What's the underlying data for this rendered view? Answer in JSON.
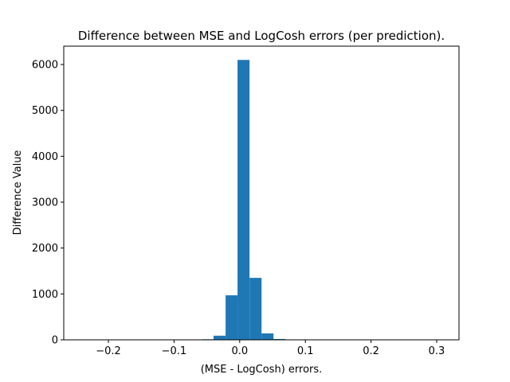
{
  "chart_data": {
    "type": "bar",
    "title": "Difference between  MSE and LogCosh errors (per prediction).",
    "xlabel": "(MSE - LogCosh) errors.",
    "ylabel": "Difference Value",
    "xlim": [
      -0.268,
      0.334
    ],
    "ylim": [
      0,
      6400
    ],
    "xticks": [
      -0.2,
      -0.1,
      0.0,
      0.1,
      0.2,
      0.3
    ],
    "xtick_labels": [
      "−0.2",
      "−0.1",
      "0.0",
      "0.1",
      "0.2",
      "0.3"
    ],
    "yticks": [
      0,
      1000,
      2000,
      3000,
      4000,
      5000,
      6000
    ],
    "ytick_labels": [
      "0",
      "1000",
      "2000",
      "3000",
      "4000",
      "5000",
      "6000"
    ],
    "bin_width": 0.01825,
    "bins": [
      {
        "x0": -0.2405,
        "count": 1
      },
      {
        "x0": -0.2223,
        "count": 0
      },
      {
        "x0": -0.204,
        "count": 0
      },
      {
        "x0": -0.1858,
        "count": 0
      },
      {
        "x0": -0.1675,
        "count": 0
      },
      {
        "x0": -0.1493,
        "count": 0
      },
      {
        "x0": -0.131,
        "count": 0
      },
      {
        "x0": -0.1128,
        "count": 0
      },
      {
        "x0": -0.0945,
        "count": 1
      },
      {
        "x0": -0.0763,
        "count": 3
      },
      {
        "x0": -0.058,
        "count": 12
      },
      {
        "x0": -0.0398,
        "count": 90
      },
      {
        "x0": -0.0215,
        "count": 970
      },
      {
        "x0": -0.0033,
        "count": 6100
      },
      {
        "x0": 0.015,
        "count": 1350
      },
      {
        "x0": 0.0332,
        "count": 140
      },
      {
        "x0": 0.0515,
        "count": 18
      },
      {
        "x0": 0.0697,
        "count": 3
      },
      {
        "x0": 0.088,
        "count": 1
      },
      {
        "x0": 0.1062,
        "count": 0
      },
      {
        "x0": 0.1245,
        "count": 0
      },
      {
        "x0": 0.1427,
        "count": 0
      },
      {
        "x0": 0.161,
        "count": 0
      },
      {
        "x0": 0.1792,
        "count": 0
      },
      {
        "x0": 0.1975,
        "count": 0
      },
      {
        "x0": 0.2157,
        "count": 0
      },
      {
        "x0": 0.234,
        "count": 0
      },
      {
        "x0": 0.2522,
        "count": 0
      },
      {
        "x0": 0.2705,
        "count": 0
      },
      {
        "x0": 0.2887,
        "count": 1
      }
    ],
    "bar_color": "#1f77b4",
    "grid": false,
    "legend": "none"
  }
}
